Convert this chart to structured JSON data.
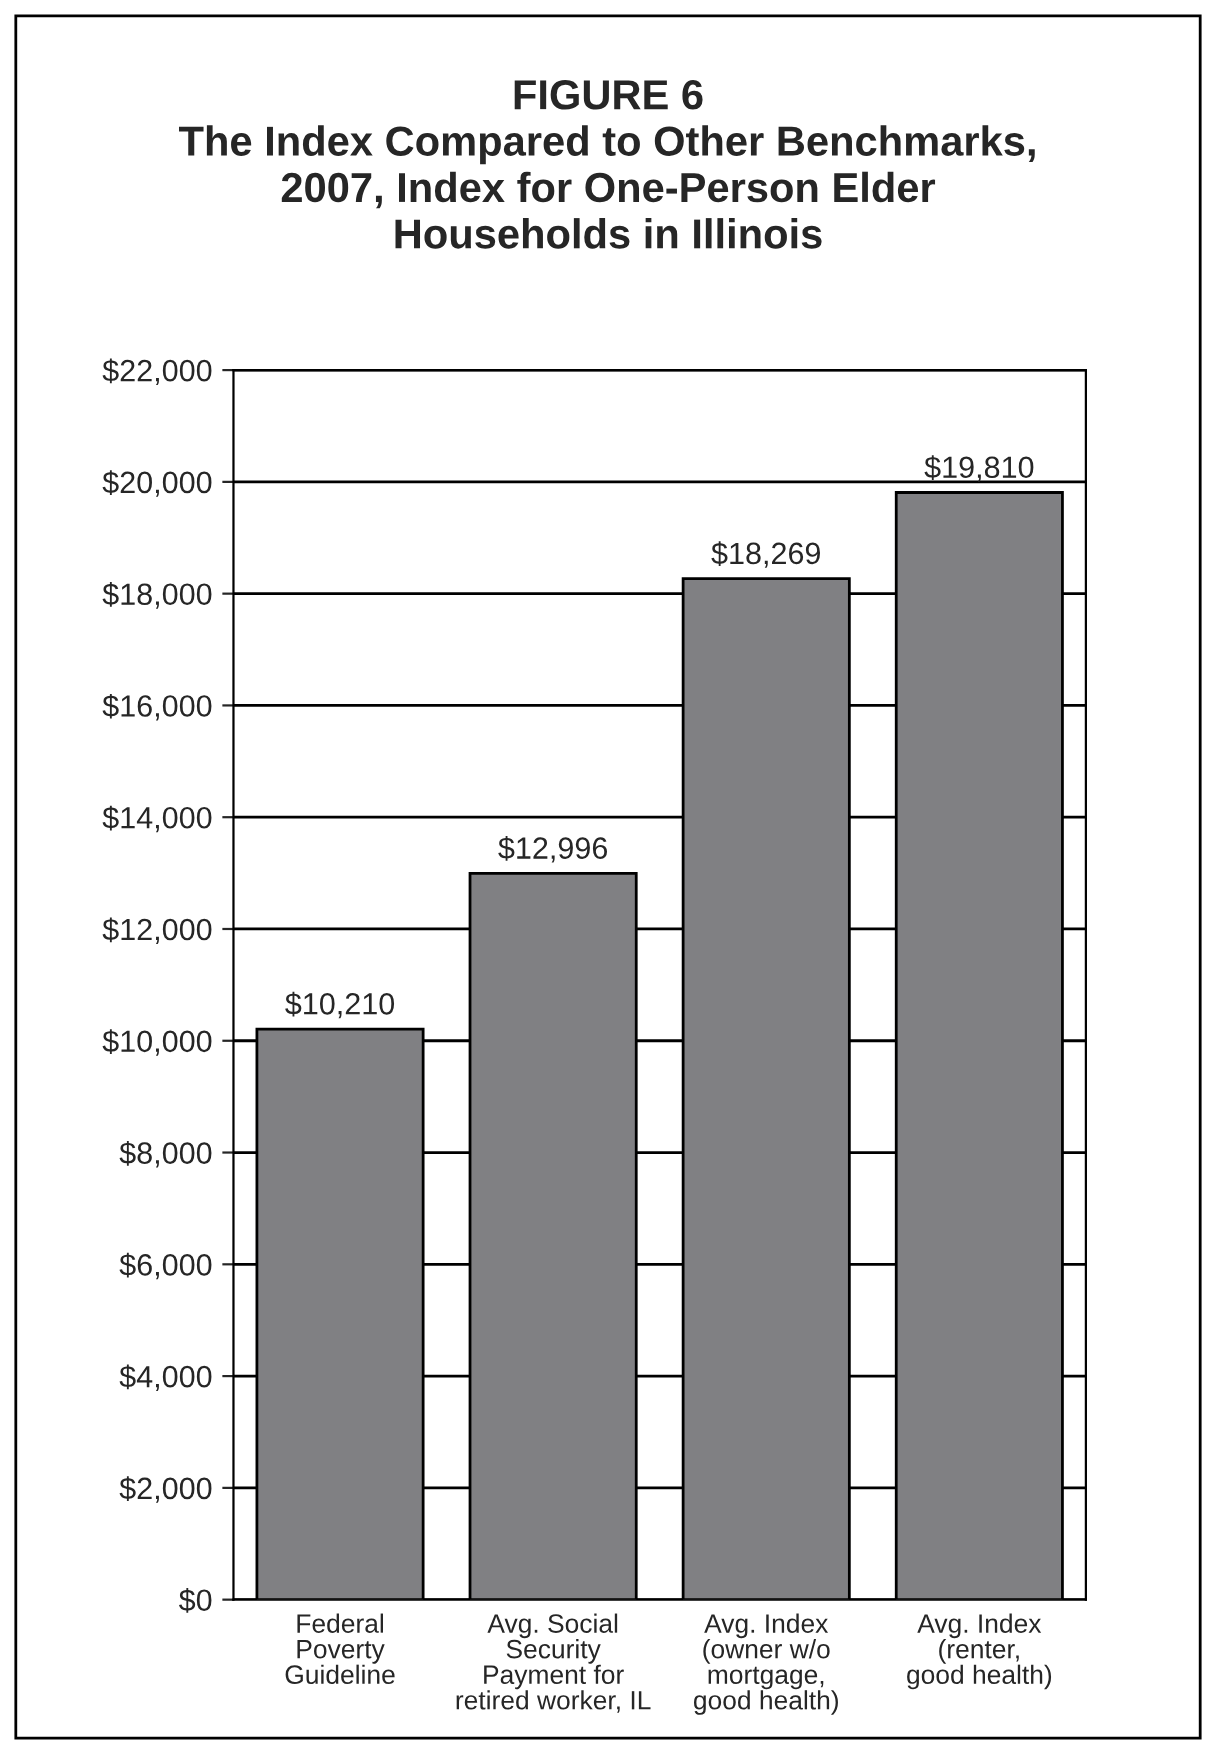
{
  "chart_data": {
    "type": "bar",
    "title": "FIGURE 6\nThe Index Compared to Other Benchmarks,\n2007, Index for One-Person Elder\nHouseholds in Illinois",
    "categories": [
      "Federal\nPoverty\nGuideline",
      "Avg. Social\nSecurity\nPayment for\nretired worker, IL",
      "Avg. Index\n(owner w/o\nmortgage,\ngood health)",
      "Avg. Index\n(renter,\ngood health)"
    ],
    "values": [
      10210,
      12996,
      18269,
      19810
    ],
    "value_labels": [
      "$10,210",
      "$12,996",
      "$18,269",
      "$19,810"
    ],
    "color": "#808083",
    "ylim": [
      0,
      22000
    ],
    "yticks": [
      {
        "value": 0,
        "label": "$0"
      },
      {
        "value": 2000,
        "label": "$2,000"
      },
      {
        "value": 4000,
        "label": "$4,000"
      },
      {
        "value": 6000,
        "label": "$6,000"
      },
      {
        "value": 8000,
        "label": "$8,000"
      },
      {
        "value": 10000,
        "label": "$10,000"
      },
      {
        "value": 12000,
        "label": "$12,000"
      },
      {
        "value": 14000,
        "label": "$14,000"
      },
      {
        "value": 16000,
        "label": "$16,000"
      },
      {
        "value": 18000,
        "label": "$18,000"
      },
      {
        "value": 20000,
        "label": "$20,000"
      },
      {
        "value": 22000,
        "label": "$22,000"
      }
    ],
    "grid": "y",
    "legend": false
  }
}
